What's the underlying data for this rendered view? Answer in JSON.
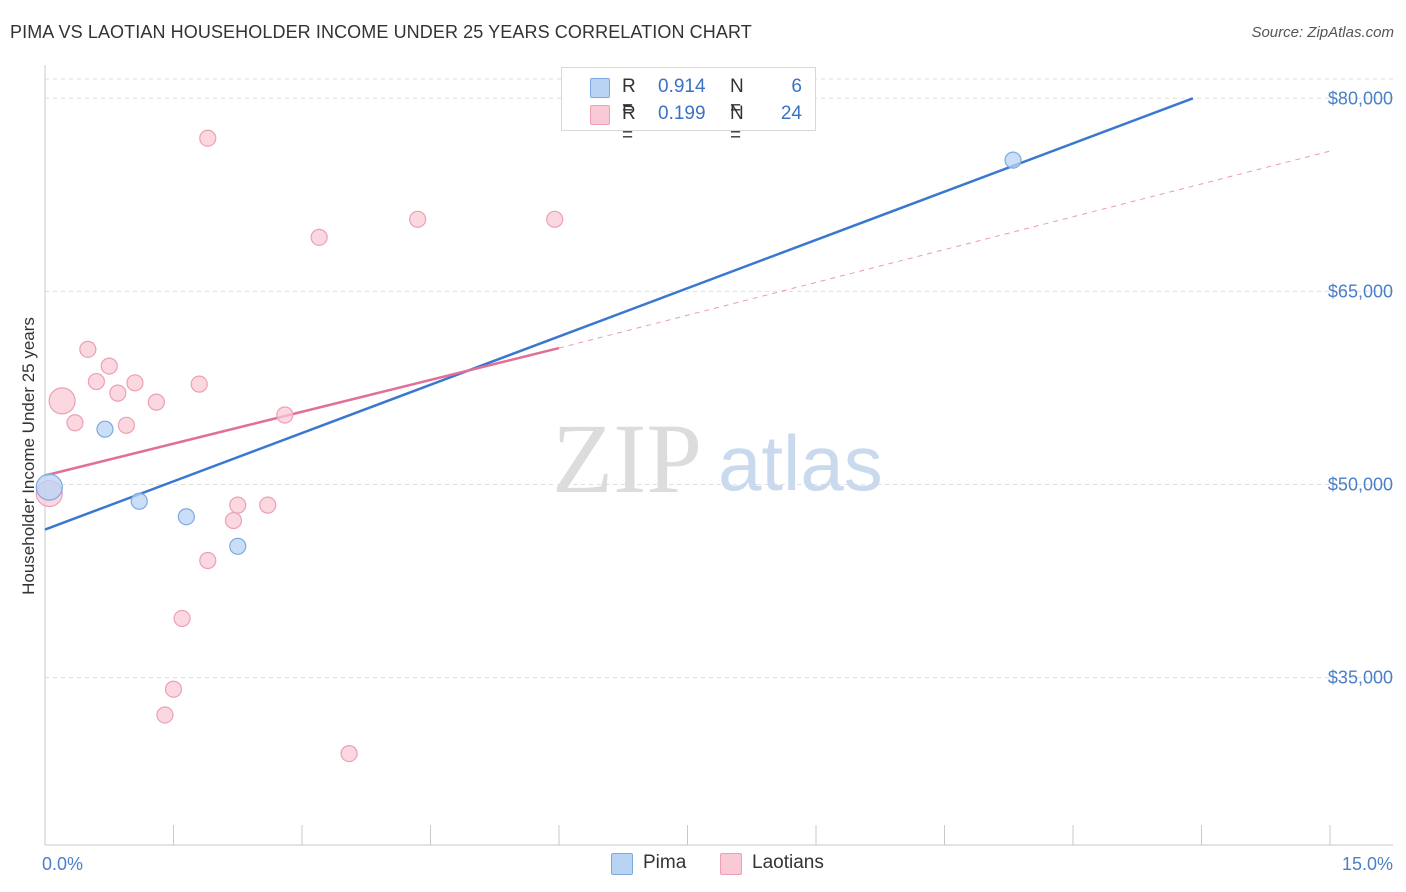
{
  "header": {
    "title": "PIMA VS LAOTIAN HOUSEHOLDER INCOME UNDER 25 YEARS CORRELATION CHART",
    "source": "Source: ZipAtlas.com"
  },
  "watermark": {
    "zip": "ZIP",
    "atlas": "atlas"
  },
  "legend": {
    "rows": [
      {
        "r_label": "R =",
        "r_value": "0.914",
        "n_label": "N =",
        "n_value": "6"
      },
      {
        "r_label": "R =",
        "r_value": "0.199",
        "n_label": "N =",
        "n_value": "24"
      }
    ]
  },
  "bottom_legend": {
    "pima": "Pima",
    "laotians": "Laotians"
  },
  "chart_data": {
    "type": "scatter",
    "title": "PIMA VS LAOTIAN HOUSEHOLDER INCOME UNDER 25 YEARS CORRELATION CHART",
    "xlabel": "",
    "ylabel": "Householder Income Under 25 years",
    "xlim": [
      0,
      15
    ],
    "ylim": [
      22000,
      81500
    ],
    "x_tick_labels": [
      "0.0%",
      "15.0%"
    ],
    "y_ticks": [
      35000,
      50000,
      65000,
      80000
    ],
    "y_tick_labels": [
      "$35,000",
      "$50,000",
      "$65,000",
      "$80,000"
    ],
    "grid": true,
    "colors": {
      "pima_fill": "#b9d3f5",
      "pima_stroke": "#7ea9e0",
      "pima_line": "#3a78d0",
      "laotian_fill": "#f9c9d6",
      "laotian_stroke": "#eba0b6",
      "laotian_line": "#e0709a"
    },
    "series": [
      {
        "name": "Pima",
        "points": [
          {
            "x": 0.05,
            "y": 49800,
            "big": true
          },
          {
            "x": 0.7,
            "y": 54300
          },
          {
            "x": 1.1,
            "y": 48700
          },
          {
            "x": 1.65,
            "y": 47500
          },
          {
            "x": 2.25,
            "y": 45200
          },
          {
            "x": 11.3,
            "y": 75200
          }
        ],
        "trend": {
          "x0": 0.0,
          "y0": 46500,
          "x1": 13.4,
          "y1": 80000
        }
      },
      {
        "name": "Laotians",
        "points": [
          {
            "x": 0.05,
            "y": 49300,
            "big": true
          },
          {
            "x": 0.2,
            "y": 56500,
            "big": true
          },
          {
            "x": 0.35,
            "y": 54800
          },
          {
            "x": 0.5,
            "y": 60500
          },
          {
            "x": 0.6,
            "y": 58000
          },
          {
            "x": 0.75,
            "y": 59200
          },
          {
            "x": 0.85,
            "y": 57100
          },
          {
            "x": 0.95,
            "y": 54600
          },
          {
            "x": 1.05,
            "y": 57900
          },
          {
            "x": 1.3,
            "y": 56400
          },
          {
            "x": 1.6,
            "y": 39600
          },
          {
            "x": 1.5,
            "y": 34100
          },
          {
            "x": 1.4,
            "y": 32100
          },
          {
            "x": 1.8,
            "y": 57800
          },
          {
            "x": 1.9,
            "y": 76900
          },
          {
            "x": 1.9,
            "y": 44100
          },
          {
            "x": 2.2,
            "y": 47200
          },
          {
            "x": 2.25,
            "y": 48400
          },
          {
            "x": 2.6,
            "y": 48400
          },
          {
            "x": 2.8,
            "y": 55400
          },
          {
            "x": 3.2,
            "y": 69200
          },
          {
            "x": 3.55,
            "y": 29100
          },
          {
            "x": 4.35,
            "y": 70600
          },
          {
            "x": 5.95,
            "y": 70600
          }
        ],
        "trend": {
          "x0": 0.0,
          "y0": 50700,
          "x1": 6.0,
          "y1": 60600
        },
        "trend_extension": {
          "x0": 6.0,
          "y0": 60600,
          "x1": 15.0,
          "y1": 75900
        }
      }
    ]
  }
}
